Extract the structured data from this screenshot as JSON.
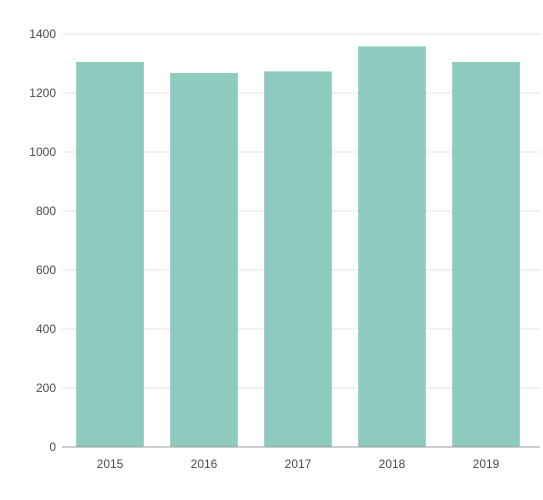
{
  "chart_data": {
    "type": "bar",
    "categories": [
      "2015",
      "2016",
      "2017",
      "2018",
      "2019"
    ],
    "values": [
      1305,
      1268,
      1273,
      1358,
      1305
    ],
    "ylim": [
      0,
      1400
    ],
    "yticks": [
      0,
      200,
      400,
      600,
      800,
      1000,
      1200,
      1400
    ],
    "grid": true,
    "legend": "none",
    "colors": {
      "bar": "#8fcabf",
      "grid": "#e6e6e6",
      "axis": "#9e9e9e",
      "text": "#4a4a4a"
    }
  }
}
